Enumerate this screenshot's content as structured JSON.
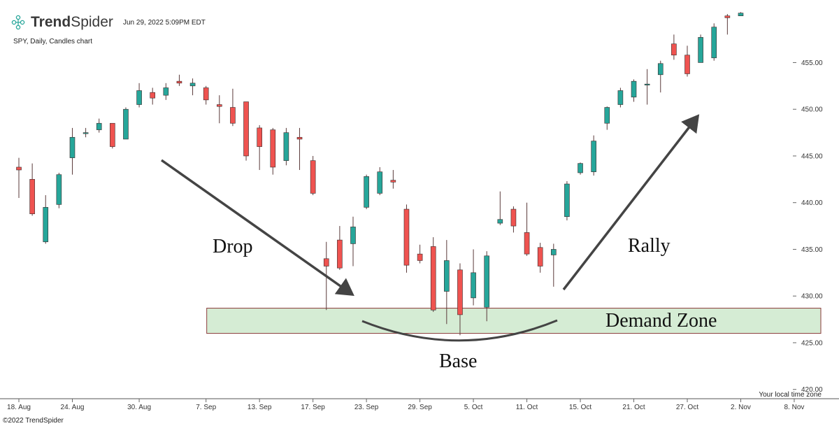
{
  "header": {
    "brand_bold": "Trend",
    "brand_light": "Spider",
    "timestamp": "Jun 29, 2022 5:09PM EDT",
    "subtitle": "SPY, Daily, Candles chart"
  },
  "footer": {
    "copyright": "©2022 TrendSpider",
    "timezone_note": "Your local time zone"
  },
  "colors": {
    "up": "#26a69a",
    "down": "#ef5350",
    "zone_fill": "#d5ecd4",
    "zone_border": "#8b3a3a",
    "arrow": "#444444"
  },
  "annotations": {
    "drop": "Drop",
    "base": "Base",
    "rally": "Rally",
    "demand_zone": "Demand Zone"
  },
  "chart_data": {
    "type": "candlestick",
    "title": "",
    "xlabel": "",
    "ylabel": "",
    "ylim": [
      420,
      460
    ],
    "y_ticks": [
      420,
      425,
      430,
      435,
      440,
      445,
      450,
      455
    ],
    "y_tick_labels": [
      "420.00",
      "425.00",
      "430.00",
      "435.00",
      "440.00",
      "445.00",
      "450.00",
      "455.00"
    ],
    "x_ticks": [
      {
        "label": "18. Aug",
        "index": 0
      },
      {
        "label": "24. Aug",
        "index": 4
      },
      {
        "label": "30. Aug",
        "index": 9
      },
      {
        "label": "7. Sep",
        "index": 14
      },
      {
        "label": "13. Sep",
        "index": 18
      },
      {
        "label": "17. Sep",
        "index": 22
      },
      {
        "label": "23. Sep",
        "index": 26
      },
      {
        "label": "29. Sep",
        "index": 30
      },
      {
        "label": "5. Oct",
        "index": 34
      },
      {
        "label": "11. Oct",
        "index": 38
      },
      {
        "label": "15. Oct",
        "index": 42
      },
      {
        "label": "21. Oct",
        "index": 46
      },
      {
        "label": "27. Oct",
        "index": 50
      },
      {
        "label": "2. Nov",
        "index": 54
      },
      {
        "label": "8. Nov",
        "index": 58
      }
    ],
    "candles": [
      {
        "o": 443.8,
        "h": 444.8,
        "l": 440.5,
        "c": 443.5
      },
      {
        "o": 442.5,
        "h": 444.2,
        "l": 438.6,
        "c": 438.8
      },
      {
        "o": 435.8,
        "h": 440.8,
        "l": 435.6,
        "c": 439.5
      },
      {
        "o": 439.8,
        "h": 443.2,
        "l": 439.4,
        "c": 443.0
      },
      {
        "o": 444.8,
        "h": 448.0,
        "l": 443.0,
        "c": 447.0
      },
      {
        "o": 447.5,
        "h": 448.0,
        "l": 447.0,
        "c": 447.5
      },
      {
        "o": 447.8,
        "h": 449.0,
        "l": 447.5,
        "c": 448.5
      },
      {
        "o": 448.5,
        "h": 448.5,
        "l": 445.8,
        "c": 446.0
      },
      {
        "o": 446.8,
        "h": 450.2,
        "l": 446.8,
        "c": 450.0
      },
      {
        "o": 450.5,
        "h": 452.8,
        "l": 450.2,
        "c": 452.0
      },
      {
        "o": 451.8,
        "h": 452.3,
        "l": 450.5,
        "c": 451.2
      },
      {
        "o": 451.5,
        "h": 452.8,
        "l": 451.0,
        "c": 452.3
      },
      {
        "o": 453.0,
        "h": 453.7,
        "l": 452.5,
        "c": 452.8
      },
      {
        "o": 452.5,
        "h": 453.3,
        "l": 451.5,
        "c": 452.8
      },
      {
        "o": 452.3,
        "h": 452.5,
        "l": 450.5,
        "c": 451.0
      },
      {
        "o": 450.5,
        "h": 451.5,
        "l": 448.5,
        "c": 450.3
      },
      {
        "o": 450.2,
        "h": 452.2,
        "l": 448.2,
        "c": 448.5
      },
      {
        "o": 450.8,
        "h": 450.8,
        "l": 444.5,
        "c": 445.0
      },
      {
        "o": 448.0,
        "h": 448.3,
        "l": 443.5,
        "c": 446.0
      },
      {
        "o": 447.8,
        "h": 448.0,
        "l": 443.0,
        "c": 443.8
      },
      {
        "o": 444.5,
        "h": 448.0,
        "l": 444.0,
        "c": 447.5
      },
      {
        "o": 447.0,
        "h": 448.0,
        "l": 443.5,
        "c": 446.8
      },
      {
        "o": 444.5,
        "h": 445.0,
        "l": 440.8,
        "c": 441.0
      },
      {
        "o": 434.0,
        "h": 435.8,
        "l": 428.5,
        "c": 433.2
      },
      {
        "o": 436.0,
        "h": 437.5,
        "l": 432.8,
        "c": 433.0
      },
      {
        "o": 435.6,
        "h": 438.5,
        "l": 433.2,
        "c": 437.4
      },
      {
        "o": 439.5,
        "h": 443.0,
        "l": 439.3,
        "c": 442.8
      },
      {
        "o": 441.0,
        "h": 443.8,
        "l": 440.8,
        "c": 443.3
      },
      {
        "o": 442.4,
        "h": 443.5,
        "l": 441.5,
        "c": 442.2
      },
      {
        "o": 439.3,
        "h": 439.8,
        "l": 432.5,
        "c": 433.3
      },
      {
        "o": 434.5,
        "h": 435.5,
        "l": 433.5,
        "c": 433.8
      },
      {
        "o": 435.3,
        "h": 436.3,
        "l": 428.3,
        "c": 428.5
      },
      {
        "o": 430.5,
        "h": 436.0,
        "l": 427.0,
        "c": 433.8
      },
      {
        "o": 432.8,
        "h": 433.5,
        "l": 425.8,
        "c": 428.0
      },
      {
        "o": 429.8,
        "h": 435.0,
        "l": 429.0,
        "c": 432.5
      },
      {
        "o": 428.8,
        "h": 434.8,
        "l": 427.3,
        "c": 434.3
      },
      {
        "o": 437.8,
        "h": 441.2,
        "l": 437.6,
        "c": 438.2
      },
      {
        "o": 439.3,
        "h": 439.6,
        "l": 436.8,
        "c": 437.5
      },
      {
        "o": 436.8,
        "h": 440.0,
        "l": 434.3,
        "c": 434.5
      },
      {
        "o": 435.2,
        "h": 435.7,
        "l": 432.5,
        "c": 433.2
      },
      {
        "o": 434.4,
        "h": 435.6,
        "l": 431.0,
        "c": 435.0
      },
      {
        "o": 438.5,
        "h": 442.3,
        "l": 438.1,
        "c": 442.0
      },
      {
        "o": 443.2,
        "h": 444.3,
        "l": 443.0,
        "c": 444.2
      },
      {
        "o": 443.3,
        "h": 447.2,
        "l": 442.9,
        "c": 446.6
      },
      {
        "o": 448.5,
        "h": 450.3,
        "l": 447.8,
        "c": 450.2
      },
      {
        "o": 450.5,
        "h": 452.3,
        "l": 450.2,
        "c": 452.0
      },
      {
        "o": 451.3,
        "h": 453.2,
        "l": 450.8,
        "c": 453.0
      },
      {
        "o": 452.7,
        "h": 454.3,
        "l": 450.5,
        "c": 452.7
      },
      {
        "o": 453.7,
        "h": 455.2,
        "l": 451.8,
        "c": 454.9
      },
      {
        "o": 457.0,
        "h": 458.0,
        "l": 455.3,
        "c": 455.8
      },
      {
        "o": 455.8,
        "h": 456.8,
        "l": 453.5,
        "c": 453.8
      },
      {
        "o": 455.0,
        "h": 458.0,
        "l": 455.0,
        "c": 457.7
      },
      {
        "o": 455.5,
        "h": 459.2,
        "l": 455.2,
        "c": 458.8
      },
      {
        "o": 460.0,
        "h": 460.2,
        "l": 458.0,
        "c": 459.8
      },
      {
        "o": 460.0,
        "h": 460.4,
        "l": 460.0,
        "c": 460.3
      }
    ],
    "demand_zone": {
      "low": 426.0,
      "high": 428.7,
      "start_index": 14
    }
  }
}
